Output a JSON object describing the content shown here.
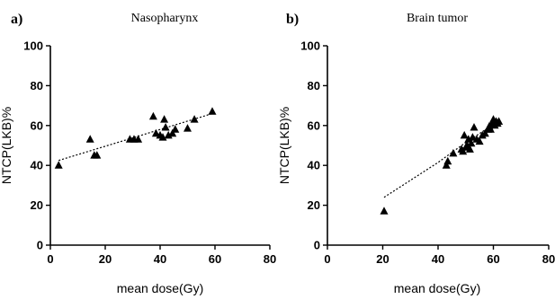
{
  "chart_data": [
    {
      "type": "scatter",
      "panel_label": "a)",
      "title": "Nasopharynx",
      "xlabel": "mean dose(Gy)",
      "ylabel": "NTCP(LKB)%",
      "xlim": [
        0,
        80
      ],
      "ylim": [
        0,
        100
      ],
      "xticks": [
        0,
        20,
        40,
        60,
        80
      ],
      "yticks": [
        0,
        20,
        40,
        60,
        80,
        100
      ],
      "marker": "triangle",
      "trendline": {
        "style": "dotted",
        "kind": "linear",
        "x": [
          3,
          59
        ],
        "y": [
          42.5,
          66
        ]
      },
      "points": [
        {
          "x": 3,
          "y": 40
        },
        {
          "x": 14.5,
          "y": 53
        },
        {
          "x": 16,
          "y": 45
        },
        {
          "x": 17,
          "y": 45
        },
        {
          "x": 29,
          "y": 53
        },
        {
          "x": 30.5,
          "y": 53
        },
        {
          "x": 32,
          "y": 53
        },
        {
          "x": 37.5,
          "y": 64.5
        },
        {
          "x": 38.5,
          "y": 56
        },
        {
          "x": 40,
          "y": 55
        },
        {
          "x": 41,
          "y": 54
        },
        {
          "x": 41.5,
          "y": 63
        },
        {
          "x": 42,
          "y": 59
        },
        {
          "x": 43,
          "y": 55
        },
        {
          "x": 44.5,
          "y": 56
        },
        {
          "x": 45.5,
          "y": 58
        },
        {
          "x": 50,
          "y": 58.5
        },
        {
          "x": 52.5,
          "y": 63
        },
        {
          "x": 59,
          "y": 67
        }
      ]
    },
    {
      "type": "scatter",
      "panel_label": "b)",
      "title": "Brain tumor",
      "xlabel": "mean dose(Gy)",
      "ylabel": "NTCP(LKB)%",
      "xlim": [
        0,
        80
      ],
      "ylim": [
        0,
        100
      ],
      "xticks": [
        0,
        20,
        40,
        60,
        80
      ],
      "yticks": [
        0,
        20,
        40,
        60,
        80,
        100
      ],
      "marker": "triangle",
      "trendline": {
        "style": "dotted",
        "kind": "curve",
        "x": [
          20.5,
          25,
          30,
          35,
          40,
          45,
          50,
          55,
          60,
          62
        ],
        "y": [
          24,
          28,
          32.5,
          37,
          41.5,
          46.5,
          51.5,
          56,
          60.5,
          62
        ]
      },
      "points": [
        {
          "x": 20.5,
          "y": 17
        },
        {
          "x": 43,
          "y": 40
        },
        {
          "x": 43.5,
          "y": 42
        },
        {
          "x": 45.5,
          "y": 46
        },
        {
          "x": 48.5,
          "y": 48
        },
        {
          "x": 49,
          "y": 47
        },
        {
          "x": 49.5,
          "y": 55
        },
        {
          "x": 50,
          "y": 49
        },
        {
          "x": 50.5,
          "y": 50
        },
        {
          "x": 51,
          "y": 53
        },
        {
          "x": 51.5,
          "y": 48
        },
        {
          "x": 52,
          "y": 51
        },
        {
          "x": 52.5,
          "y": 54
        },
        {
          "x": 53,
          "y": 59
        },
        {
          "x": 54,
          "y": 53
        },
        {
          "x": 55,
          "y": 52
        },
        {
          "x": 56,
          "y": 55
        },
        {
          "x": 57,
          "y": 56
        },
        {
          "x": 58,
          "y": 58
        },
        {
          "x": 58.5,
          "y": 59.5
        },
        {
          "x": 59,
          "y": 58
        },
        {
          "x": 59.5,
          "y": 61
        },
        {
          "x": 60,
          "y": 63
        },
        {
          "x": 60.5,
          "y": 60
        },
        {
          "x": 61,
          "y": 62
        },
        {
          "x": 61.5,
          "y": 61
        },
        {
          "x": 62,
          "y": 62
        }
      ]
    }
  ]
}
